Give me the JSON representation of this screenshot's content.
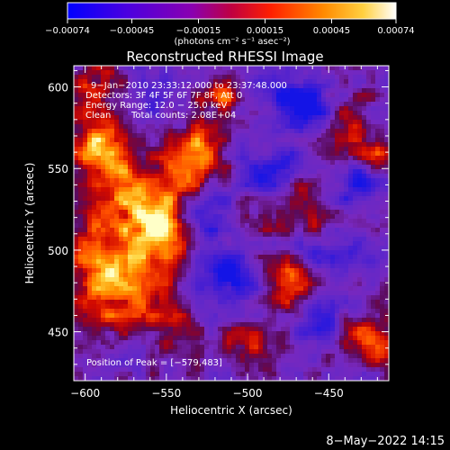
{
  "chart_data": {
    "type": "heatmap",
    "title": "Reconstructed RHESSI Image",
    "xlabel": "Heliocentric X (arcsec)",
    "ylabel": "Heliocentric Y (arcsec)",
    "xlim": [
      -607,
      -413
    ],
    "ylim": [
      420,
      613
    ],
    "x_ticks": [
      -600,
      -550,
      -500,
      -450
    ],
    "x_tick_labels": [
      "−600",
      "−550",
      "−500",
      "−450"
    ],
    "y_ticks": [
      450,
      500,
      550,
      600
    ],
    "y_tick_labels": [
      "450",
      "500",
      "550",
      "600"
    ],
    "colorbar": {
      "range": [
        -0.00074,
        0.00074
      ],
      "ticks": [
        -0.00074,
        -0.00045,
        -0.00015,
        0.00015,
        0.00045,
        0.00074
      ],
      "tick_labels": [
        "−0.00074",
        "−0.00045",
        "−0.00015",
        "0.00015",
        "0.00045",
        "0.00074"
      ],
      "units": "(photons cm⁻² s⁻¹ asec⁻²)",
      "colors": [
        "#0000ff",
        "#6a00c0",
        "#7b2ad6",
        "#b000a0",
        "#e00000",
        "#ff6000",
        "#ffb000",
        "#ffff60",
        "#ffffff"
      ]
    },
    "annotations": {
      "time_range": "9−Jan−2010 23:33:12.000 to 23:37:48.000",
      "detectors": "Detectors: 3F 4F 5F 6F 7F 8F, Att 0",
      "energy": "Energy Range: 12.0 − 25.0 keV",
      "clean_label": "Clean",
      "total_counts": "Total counts: 2.08E+04",
      "peak": "Position of Peak = [−579,483]"
    },
    "peak_position": [
      -579,
      483
    ],
    "hotspots": [
      {
        "x": -580,
        "y": 485,
        "v": 1.0,
        "s": 22
      },
      {
        "x": -590,
        "y": 565,
        "v": 0.85,
        "s": 14
      },
      {
        "x": -555,
        "y": 515,
        "v": 0.8,
        "s": 12
      },
      {
        "x": -530,
        "y": 560,
        "v": 0.8,
        "s": 12
      },
      {
        "x": -578,
        "y": 535,
        "v": 0.6,
        "s": 14
      },
      {
        "x": -545,
        "y": 540,
        "v": 0.45,
        "s": 12
      },
      {
        "x": -595,
        "y": 600,
        "v": 0.55,
        "s": 10
      },
      {
        "x": -515,
        "y": 595,
        "v": 0.5,
        "s": 10
      },
      {
        "x": -455,
        "y": 515,
        "v": 0.55,
        "s": 9
      },
      {
        "x": -470,
        "y": 480,
        "v": 0.65,
        "s": 12
      },
      {
        "x": -425,
        "y": 445,
        "v": 0.75,
        "s": 10
      },
      {
        "x": -440,
        "y": 575,
        "v": 0.5,
        "s": 10
      },
      {
        "x": -420,
        "y": 560,
        "v": 0.6,
        "s": 8
      },
      {
        "x": -500,
        "y": 440,
        "v": 0.5,
        "s": 10
      },
      {
        "x": -545,
        "y": 455,
        "v": 0.4,
        "s": 10
      },
      {
        "x": -470,
        "y": 530,
        "v": 0.4,
        "s": 10
      },
      {
        "x": -495,
        "y": 515,
        "v": 0.35,
        "s": 8
      }
    ],
    "coldspots": [
      {
        "x": -515,
        "y": 485,
        "v": -1.0,
        "s": 12
      },
      {
        "x": -460,
        "y": 585,
        "v": -0.9,
        "s": 10
      },
      {
        "x": -450,
        "y": 500,
        "v": -0.8,
        "s": 12
      },
      {
        "x": -430,
        "y": 540,
        "v": -0.8,
        "s": 10
      },
      {
        "x": -480,
        "y": 600,
        "v": -0.7,
        "s": 12
      },
      {
        "x": -525,
        "y": 520,
        "v": -0.6,
        "s": 10
      },
      {
        "x": -560,
        "y": 590,
        "v": -0.5,
        "s": 10
      },
      {
        "x": -485,
        "y": 550,
        "v": -0.6,
        "s": 12
      },
      {
        "x": -455,
        "y": 455,
        "v": -0.6,
        "s": 10
      }
    ]
  },
  "footer": {
    "timestamp": "8−May−2022 14:15"
  }
}
